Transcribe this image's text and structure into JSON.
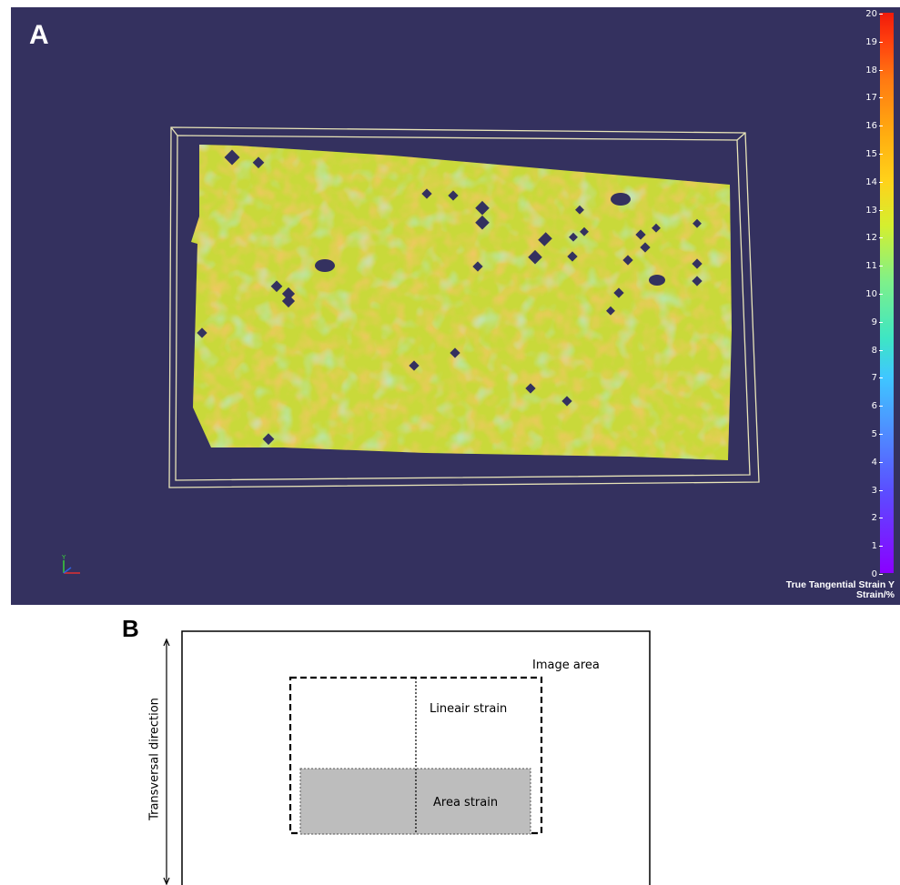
{
  "panel_a": {
    "letter": "A",
    "colorbar": {
      "min": 0,
      "max": 20,
      "ticks": [
        "20",
        "19",
        "18",
        "17",
        "16",
        "15",
        "14",
        "13",
        "12",
        "11",
        "10",
        "9",
        "8",
        "7",
        "6",
        "5",
        "4",
        "3",
        "2",
        "1",
        "0"
      ],
      "title": "True Tangential Strain Y",
      "unit": "Strain/%"
    },
    "axis_triad": {
      "y_label": "Y"
    },
    "colors": {
      "background": "#34315f",
      "specimen": "#c9d93a",
      "box": "#e8e4b8"
    }
  },
  "panel_b": {
    "letter": "B",
    "image_area_label": "Image area",
    "linear_strain_label": "Lineair strain",
    "area_strain_label": "Area strain",
    "direction_label": "Transversal direction",
    "colors": {
      "area_fill": "#bdbdbd"
    }
  }
}
